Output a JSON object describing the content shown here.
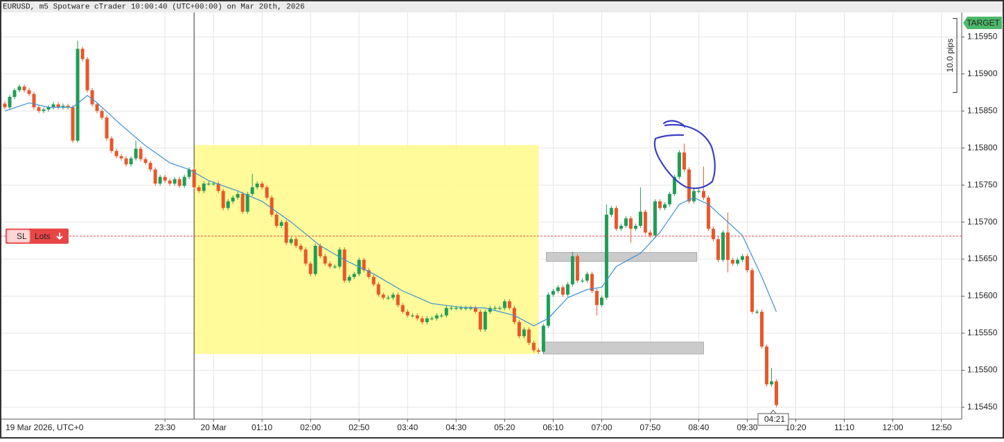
{
  "chart_data": {
    "type": "candlestick",
    "title": "EURUSD, m5 Spotware cTrader 10:00:40 (UTC+00:00) on Mar 20th, 2026",
    "start_label": "19 Mar 2026, UTC+0",
    "up_color": "#1f9d55",
    "down_color": "#e8572a",
    "xlim": [
      1240,
      2231
    ],
    "xticks": [
      {
        "value": 1410,
        "label": "23:30"
      },
      {
        "value": 1460,
        "label": "20 Mar"
      },
      {
        "value": 1510,
        "label": "01:10"
      },
      {
        "value": 1560,
        "label": "02:00"
      },
      {
        "value": 1610,
        "label": "02:50"
      },
      {
        "value": 1660,
        "label": "03:40"
      },
      {
        "value": 1710,
        "label": "04:30"
      },
      {
        "value": 1760,
        "label": "05:20"
      },
      {
        "value": 1810,
        "label": "06:10"
      },
      {
        "value": 1860,
        "label": "07:00"
      },
      {
        "value": 1910,
        "label": "07:50"
      },
      {
        "value": 1960,
        "label": "08:40"
      },
      {
        "value": 2010,
        "label": "09:30"
      },
      {
        "value": 2060,
        "label": "10:20"
      },
      {
        "value": 2110,
        "label": "11:10"
      },
      {
        "value": 2160,
        "label": "12:00"
      },
      {
        "value": 2210,
        "label": "12:50"
      }
    ],
    "ylim": [
      1.15434,
      1.15983
    ],
    "yticks": [
      {
        "value": 1.1545,
        "label": "1.15450"
      },
      {
        "value": 1.155,
        "label": "1.15500"
      },
      {
        "value": 1.1555,
        "label": "1.15550"
      },
      {
        "value": 1.156,
        "label": "1.15600"
      },
      {
        "value": 1.1565,
        "label": "1.15650"
      },
      {
        "value": 1.157,
        "label": "1.15700"
      },
      {
        "value": 1.1575,
        "label": "1.15750"
      },
      {
        "value": 1.158,
        "label": "1.15800"
      },
      {
        "value": 1.1585,
        "label": "1.15850"
      },
      {
        "value": 1.159,
        "label": "1.15900"
      },
      {
        "value": 1.1595,
        "label": "1.15950"
      }
    ],
    "grid": true,
    "day_separator": 1440,
    "x": [
      1245,
      1250,
      1255,
      1260,
      1265,
      1270,
      1275,
      1280,
      1285,
      1290,
      1295,
      1300,
      1305,
      1310,
      1315,
      1320,
      1325,
      1330,
      1335,
      1340,
      1345,
      1350,
      1355,
      1360,
      1365,
      1370,
      1375,
      1380,
      1385,
      1390,
      1395,
      1400,
      1405,
      1410,
      1415,
      1420,
      1425,
      1430,
      1435,
      1440,
      1445,
      1450,
      1455,
      1460,
      1465,
      1470,
      1475,
      1480,
      1485,
      1490,
      1495,
      1500,
      1505,
      1510,
      1515,
      1520,
      1525,
      1530,
      1535,
      1540,
      1545,
      1550,
      1555,
      1560,
      1565,
      1570,
      1575,
      1580,
      1585,
      1590,
      1595,
      1600,
      1605,
      1610,
      1615,
      1620,
      1625,
      1630,
      1635,
      1640,
      1645,
      1650,
      1655,
      1660,
      1665,
      1670,
      1675,
      1680,
      1685,
      1690,
      1695,
      1700,
      1705,
      1710,
      1715,
      1720,
      1725,
      1730,
      1735,
      1740,
      1745,
      1750,
      1755,
      1760,
      1765,
      1770,
      1775,
      1780,
      1785,
      1790,
      1795,
      1800,
      1805,
      1810,
      1815,
      1820,
      1825,
      1830,
      1835,
      1840,
      1845,
      1850,
      1855,
      1860,
      1865,
      1870,
      1875,
      1880,
      1885,
      1890,
      1895,
      1900,
      1905,
      1910,
      1915,
      1920,
      1925,
      1930,
      1935,
      1940,
      1945,
      1950,
      1955,
      1960,
      1965,
      1970,
      1975,
      1980,
      1985,
      1990,
      1995,
      2000,
      2005,
      2010,
      2015,
      2020,
      2025,
      2030,
      2035,
      2040
    ],
    "ohlc": [
      [
        1.1586,
        1.15863,
        1.15852,
        1.15855
      ],
      [
        1.15855,
        1.15872,
        1.15852,
        1.15869
      ],
      [
        1.15869,
        1.15881,
        1.15866,
        1.15878
      ],
      [
        1.15878,
        1.15886,
        1.15875,
        1.15883
      ],
      [
        1.15883,
        1.15886,
        1.15875,
        1.15878
      ],
      [
        1.15878,
        1.15881,
        1.1587,
        1.15873
      ],
      [
        1.15873,
        1.15876,
        1.15852,
        1.15855
      ],
      [
        1.15855,
        1.15858,
        1.15847,
        1.1585
      ],
      [
        1.1585,
        1.15855,
        1.15847,
        1.15852
      ],
      [
        1.15852,
        1.15858,
        1.15849,
        1.15855
      ],
      [
        1.15855,
        1.15862,
        1.15852,
        1.15859
      ],
      [
        1.15859,
        1.15862,
        1.15852,
        1.15855
      ],
      [
        1.15855,
        1.1586,
        1.15852,
        1.15857
      ],
      [
        1.15857,
        1.1586,
        1.15852,
        1.15855
      ],
      [
        1.15855,
        1.15858,
        1.15807,
        1.1581
      ],
      [
        1.1581,
        1.15945,
        1.15807,
        1.15934
      ],
      [
        1.15934,
        1.15937,
        1.15917,
        1.1592
      ],
      [
        1.1592,
        1.15923,
        1.15875,
        1.15878
      ],
      [
        1.15878,
        1.15881,
        1.15856,
        1.15859
      ],
      [
        1.15859,
        1.15862,
        1.15847,
        1.1585
      ],
      [
        1.1585,
        1.15853,
        1.15838,
        1.15841
      ],
      [
        1.15841,
        1.15844,
        1.1581,
        1.15813
      ],
      [
        1.15813,
        1.15816,
        1.15793,
        1.15796
      ],
      [
        1.15796,
        1.15799,
        1.15786,
        1.15789
      ],
      [
        1.15789,
        1.15792,
        1.15783,
        1.15786
      ],
      [
        1.15786,
        1.15789,
        1.15775,
        1.15778
      ],
      [
        1.15778,
        1.15789,
        1.15775,
        1.15786
      ],
      [
        1.15786,
        1.1581,
        1.15783,
        1.15799
      ],
      [
        1.15799,
        1.15802,
        1.15782,
        1.15785
      ],
      [
        1.15785,
        1.15788,
        1.15777,
        1.1578
      ],
      [
        1.1578,
        1.15783,
        1.15768,
        1.15771
      ],
      [
        1.15771,
        1.15774,
        1.15749,
        1.15752
      ],
      [
        1.15752,
        1.15764,
        1.15749,
        1.15761
      ],
      [
        1.15761,
        1.15764,
        1.15753,
        1.15756
      ],
      [
        1.15756,
        1.15759,
        1.15749,
        1.15752
      ],
      [
        1.15752,
        1.15761,
        1.15749,
        1.15758
      ],
      [
        1.15758,
        1.15761,
        1.15746,
        1.15749
      ],
      [
        1.15749,
        1.15764,
        1.15746,
        1.15761
      ],
      [
        1.15761,
        1.15774,
        1.15758,
        1.15771
      ],
      [
        1.15771,
        1.15774,
        1.15744,
        1.15747
      ],
      [
        1.15747,
        1.1575,
        1.15739,
        1.15742
      ],
      [
        1.15742,
        1.15755,
        1.15739,
        1.15752
      ],
      [
        1.15752,
        1.15755,
        1.15749,
        1.15752
      ],
      [
        1.15752,
        1.15755,
        1.15749,
        1.15752
      ],
      [
        1.15752,
        1.15755,
        1.15739,
        1.15742
      ],
      [
        1.15742,
        1.15745,
        1.15716,
        1.15719
      ],
      [
        1.15719,
        1.15731,
        1.15716,
        1.15728
      ],
      [
        1.15728,
        1.15736,
        1.15725,
        1.15733
      ],
      [
        1.15733,
        1.15741,
        1.1573,
        1.15738
      ],
      [
        1.15738,
        1.15741,
        1.15711,
        1.15714
      ],
      [
        1.15714,
        1.15741,
        1.15711,
        1.15738
      ],
      [
        1.15738,
        1.15765,
        1.15735,
        1.15747
      ],
      [
        1.15747,
        1.15755,
        1.15744,
        1.15752
      ],
      [
        1.15752,
        1.15755,
        1.15744,
        1.15747
      ],
      [
        1.15747,
        1.1575,
        1.1573,
        1.15733
      ],
      [
        1.15733,
        1.15736,
        1.15707,
        1.1571
      ],
      [
        1.1571,
        1.15713,
        1.15692,
        1.15695
      ],
      [
        1.15695,
        1.15703,
        1.15692,
        1.157
      ],
      [
        1.157,
        1.15703,
        1.15669,
        1.15672
      ],
      [
        1.15672,
        1.1568,
        1.15669,
        1.15677
      ],
      [
        1.15677,
        1.1568,
        1.15665,
        1.15668
      ],
      [
        1.15668,
        1.15671,
        1.1566,
        1.15663
      ],
      [
        1.15663,
        1.15666,
        1.15641,
        1.15644
      ],
      [
        1.15644,
        1.15647,
        1.15627,
        1.1563
      ],
      [
        1.1563,
        1.15671,
        1.15627,
        1.15668
      ],
      [
        1.15668,
        1.15671,
        1.15651,
        1.15654
      ],
      [
        1.15654,
        1.15657,
        1.15641,
        1.15644
      ],
      [
        1.15644,
        1.15647,
        1.15637,
        1.1564
      ],
      [
        1.1564,
        1.15643,
        1.15637,
        1.1564
      ],
      [
        1.1564,
        1.15666,
        1.15637,
        1.15663
      ],
      [
        1.15663,
        1.15666,
        1.15618,
        1.15621
      ],
      [
        1.15621,
        1.15629,
        1.15618,
        1.15626
      ],
      [
        1.15626,
        1.15633,
        1.15623,
        1.1563
      ],
      [
        1.1563,
        1.15652,
        1.15627,
        1.15649
      ],
      [
        1.15649,
        1.15652,
        1.15632,
        1.15635
      ],
      [
        1.15635,
        1.15638,
        1.15623,
        1.15626
      ],
      [
        1.15626,
        1.15629,
        1.15613,
        1.15616
      ],
      [
        1.15616,
        1.15619,
        1.15599,
        1.15602
      ],
      [
        1.15602,
        1.15605,
        1.15595,
        1.15598
      ],
      [
        1.15598,
        1.15601,
        1.15595,
        1.15598
      ],
      [
        1.15598,
        1.15605,
        1.15595,
        1.15602
      ],
      [
        1.15602,
        1.15605,
        1.15585,
        1.15588
      ],
      [
        1.15588,
        1.15591,
        1.15576,
        1.15579
      ],
      [
        1.15579,
        1.15582,
        1.15571,
        1.15574
      ],
      [
        1.15574,
        1.15577,
        1.15571,
        1.15574
      ],
      [
        1.15574,
        1.15577,
        1.15567,
        1.1557
      ],
      [
        1.1557,
        1.15573,
        1.15562,
        1.15565
      ],
      [
        1.15565,
        1.15573,
        1.15562,
        1.1557
      ],
      [
        1.1557,
        1.15573,
        1.15567,
        1.1557
      ],
      [
        1.1557,
        1.15577,
        1.15567,
        1.15574
      ],
      [
        1.15574,
        1.15577,
        1.15571,
        1.15574
      ],
      [
        1.15574,
        1.15587,
        1.15571,
        1.15584
      ],
      [
        1.15584,
        1.15587,
        1.15581,
        1.15584
      ],
      [
        1.15584,
        1.15587,
        1.15581,
        1.15584
      ],
      [
        1.15584,
        1.15587,
        1.15581,
        1.15584
      ],
      [
        1.15584,
        1.15587,
        1.15581,
        1.15584
      ],
      [
        1.15584,
        1.15587,
        1.15581,
        1.15584
      ],
      [
        1.15584,
        1.15587,
        1.15576,
        1.15579
      ],
      [
        1.15579,
        1.15582,
        1.15552,
        1.15555
      ],
      [
        1.15555,
        1.15582,
        1.15552,
        1.15579
      ],
      [
        1.15579,
        1.15587,
        1.15576,
        1.15584
      ],
      [
        1.15584,
        1.15587,
        1.15581,
        1.15584
      ],
      [
        1.15584,
        1.15587,
        1.15581,
        1.15584
      ],
      [
        1.15584,
        1.15596,
        1.15581,
        1.15593
      ],
      [
        1.15593,
        1.15596,
        1.15581,
        1.15584
      ],
      [
        1.15584,
        1.15587,
        1.15562,
        1.15565
      ],
      [
        1.15565,
        1.15568,
        1.15543,
        1.15546
      ],
      [
        1.15546,
        1.15558,
        1.15543,
        1.15555
      ],
      [
        1.15555,
        1.15558,
        1.15534,
        1.15537
      ],
      [
        1.15537,
        1.1554,
        1.15524,
        1.15527
      ],
      [
        1.15527,
        1.1553,
        1.15522,
        1.15525
      ],
      [
        1.15525,
        1.15563,
        1.15522,
        1.1556
      ],
      [
        1.1556,
        1.15605,
        1.15557,
        1.15602
      ],
      [
        1.15602,
        1.1561,
        1.15599,
        1.15607
      ],
      [
        1.15607,
        1.15615,
        1.15604,
        1.15612
      ],
      [
        1.15612,
        1.15615,
        1.15599,
        1.15602
      ],
      [
        1.15602,
        1.15619,
        1.15599,
        1.15616
      ],
      [
        1.15616,
        1.1566,
        1.15613,
        1.15654
      ],
      [
        1.15654,
        1.15657,
        1.15618,
        1.15621
      ],
      [
        1.15621,
        1.15624,
        1.15618,
        1.15621
      ],
      [
        1.15621,
        1.15633,
        1.15618,
        1.1563
      ],
      [
        1.1563,
        1.15633,
        1.15604,
        1.15607
      ],
      [
        1.15607,
        1.1561,
        1.15574,
        1.15588
      ],
      [
        1.15588,
        1.15601,
        1.15585,
        1.15598
      ],
      [
        1.15598,
        1.15724,
        1.15595,
        1.1571
      ],
      [
        1.1571,
        1.15722,
        1.15707,
        1.15719
      ],
      [
        1.15719,
        1.15722,
        1.15688,
        1.15691
      ],
      [
        1.15691,
        1.15698,
        1.15688,
        1.15695
      ],
      [
        1.15695,
        1.15708,
        1.15692,
        1.15705
      ],
      [
        1.15705,
        1.15708,
        1.15672,
        1.15691
      ],
      [
        1.15691,
        1.15698,
        1.15688,
        1.15695
      ],
      [
        1.15695,
        1.15747,
        1.15692,
        1.15714
      ],
      [
        1.15714,
        1.15717,
        1.15683,
        1.15686
      ],
      [
        1.15686,
        1.15689,
        1.15679,
        1.15682
      ],
      [
        1.15682,
        1.15731,
        1.15679,
        1.15728
      ],
      [
        1.15728,
        1.15731,
        1.15716,
        1.15719
      ],
      [
        1.15719,
        1.15727,
        1.15716,
        1.15724
      ],
      [
        1.15724,
        1.15741,
        1.15721,
        1.15738
      ],
      [
        1.15738,
        1.15764,
        1.15735,
        1.15761
      ],
      [
        1.15761,
        1.15797,
        1.15758,
        1.15794
      ],
      [
        1.15794,
        1.15806,
        1.15768,
        1.15771
      ],
      [
        1.15771,
        1.15774,
        1.15725,
        1.15728
      ],
      [
        1.15728,
        1.15745,
        1.15725,
        1.15742
      ],
      [
        1.15742,
        1.15745,
        1.15739,
        1.15742
      ],
      [
        1.15742,
        1.15775,
        1.1573,
        1.15733
      ],
      [
        1.15733,
        1.15736,
        1.15688,
        1.15691
      ],
      [
        1.15691,
        1.15694,
        1.15674,
        1.15677
      ],
      [
        1.15677,
        1.1568,
        1.15646,
        1.15649
      ],
      [
        1.15649,
        1.15689,
        1.15646,
        1.15686
      ],
      [
        1.15686,
        1.15713,
        1.15632,
        1.15649
      ],
      [
        1.15649,
        1.15652,
        1.15641,
        1.15644
      ],
      [
        1.15644,
        1.15652,
        1.15641,
        1.15649
      ],
      [
        1.15649,
        1.15657,
        1.15646,
        1.15654
      ],
      [
        1.15654,
        1.15657,
        1.15632,
        1.15635
      ],
      [
        1.15635,
        1.15638,
        1.15576,
        1.15579
      ],
      [
        1.15579,
        1.15582,
        1.15576,
        1.15579
      ],
      [
        1.15579,
        1.15582,
        1.15529,
        1.15532
      ],
      [
        1.15532,
        1.15535,
        1.15478,
        1.15481
      ],
      [
        1.15481,
        1.15503,
        1.15478,
        1.15485
      ],
      [
        1.15485,
        1.15488,
        1.1545,
        1.15453
      ]
    ],
    "indicator": {
      "color": "#3a8fd6",
      "x": [
        1245,
        1270,
        1290,
        1315,
        1330,
        1340,
        1365,
        1390,
        1415,
        1435,
        1455,
        1485,
        1510,
        1540,
        1570,
        1595,
        1625,
        1655,
        1685,
        1715,
        1740,
        1770,
        1790,
        1805,
        1825,
        1845,
        1860,
        1875,
        1900,
        1920,
        1940,
        1955,
        1970,
        1990,
        2005,
        2025,
        2040
      ],
      "values": [
        1.1585,
        1.15861,
        1.15855,
        1.15855,
        1.15871,
        1.15861,
        1.15831,
        1.15803,
        1.1578,
        1.15771,
        1.15756,
        1.15742,
        1.15728,
        1.157,
        1.15668,
        1.15649,
        1.1563,
        1.15607,
        1.1559,
        1.15585,
        1.15584,
        1.15574,
        1.1556,
        1.1557,
        1.15598,
        1.15609,
        1.15612,
        1.1564,
        1.15658,
        1.15686,
        1.15724,
        1.15733,
        1.15724,
        1.157,
        1.15682,
        1.15626,
        1.15579
      ]
    },
    "zones": [
      {
        "color": "#fff98f",
        "x": [
          1440,
          1795
        ],
        "y": [
          1.15522,
          1.15804
        ]
      },
      {
        "color": "#c8c8c8",
        "x": [
          1803,
          1958
        ],
        "y": [
          1.15647,
          1.15659
        ]
      },
      {
        "color": "#c8c8c8",
        "x": [
          1800,
          1965
        ],
        "y": [
          1.15522,
          1.15538
        ]
      }
    ],
    "stop_loss": {
      "price": 1.15681,
      "label": "SL",
      "lots_label": "Lots",
      "color": "#e84545"
    },
    "target": {
      "price": 1.15969,
      "label": "TARGET",
      "color": "#4cb86a"
    },
    "pips_ruler": {
      "range": [
        1.15875,
        1.15975
      ],
      "label": "10.0 pips"
    },
    "countdown": "04:21"
  }
}
